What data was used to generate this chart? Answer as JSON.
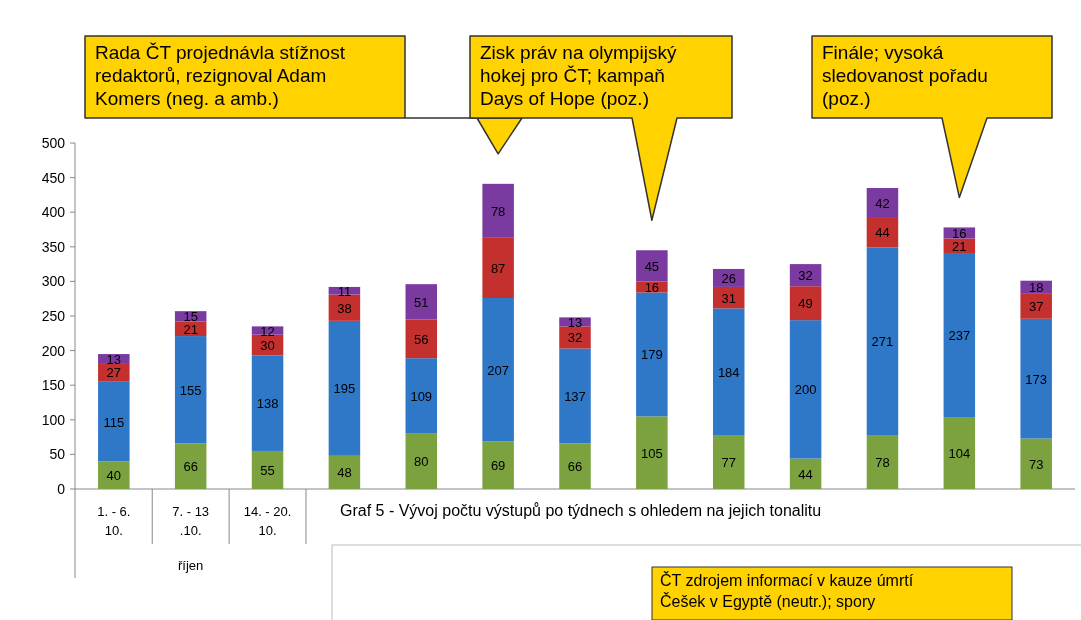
{
  "chart_data": {
    "type": "bar",
    "stacked": true,
    "data_labels": true,
    "categories": [
      "1. - 6. 10.",
      "7. - 13 .10.",
      "14. - 20. 10.",
      null,
      null,
      null,
      null,
      null,
      null,
      null,
      null,
      null,
      null
    ],
    "series": [
      {
        "color": "#7ba23f",
        "values": [
          40,
          66,
          55,
          48,
          80,
          69,
          66,
          105,
          77,
          44,
          78,
          104,
          73
        ]
      },
      {
        "color": "#2f78c8",
        "values": [
          115,
          155,
          138,
          195,
          109,
          207,
          137,
          179,
          184,
          200,
          271,
          237,
          173
        ]
      },
      {
        "color": "#c4302e",
        "values": [
          27,
          21,
          30,
          38,
          56,
          87,
          32,
          16,
          31,
          49,
          44,
          21,
          37
        ]
      },
      {
        "color": "#7a3aa0",
        "values": [
          13,
          15,
          12,
          11,
          51,
          78,
          13,
          45,
          26,
          32,
          42,
          16,
          18
        ]
      }
    ],
    "ylim": [
      0,
      500
    ],
    "yticks": [
      0,
      50,
      100,
      150,
      200,
      250,
      300,
      350,
      400,
      450,
      500
    ],
    "grid": false,
    "annotations": [
      "Rada ČT projednávla stížnost redaktorů, rezignoval Adam Komers  (neg. a amb.)",
      "Zisk práv na olympijský hokej pro ČT; kampaň Days of Hope (poz.)",
      "Finále; vysoká sledovanost pořadu (poz.)",
      "říjen",
      "Graf 5 - Vývoj počtu výstupů po týdnech s ohledem na jejich tonalitu",
      "ČT zdrojem informací v kauze úmrtí Češek v Egyptě (neutr.); spory"
    ]
  }
}
